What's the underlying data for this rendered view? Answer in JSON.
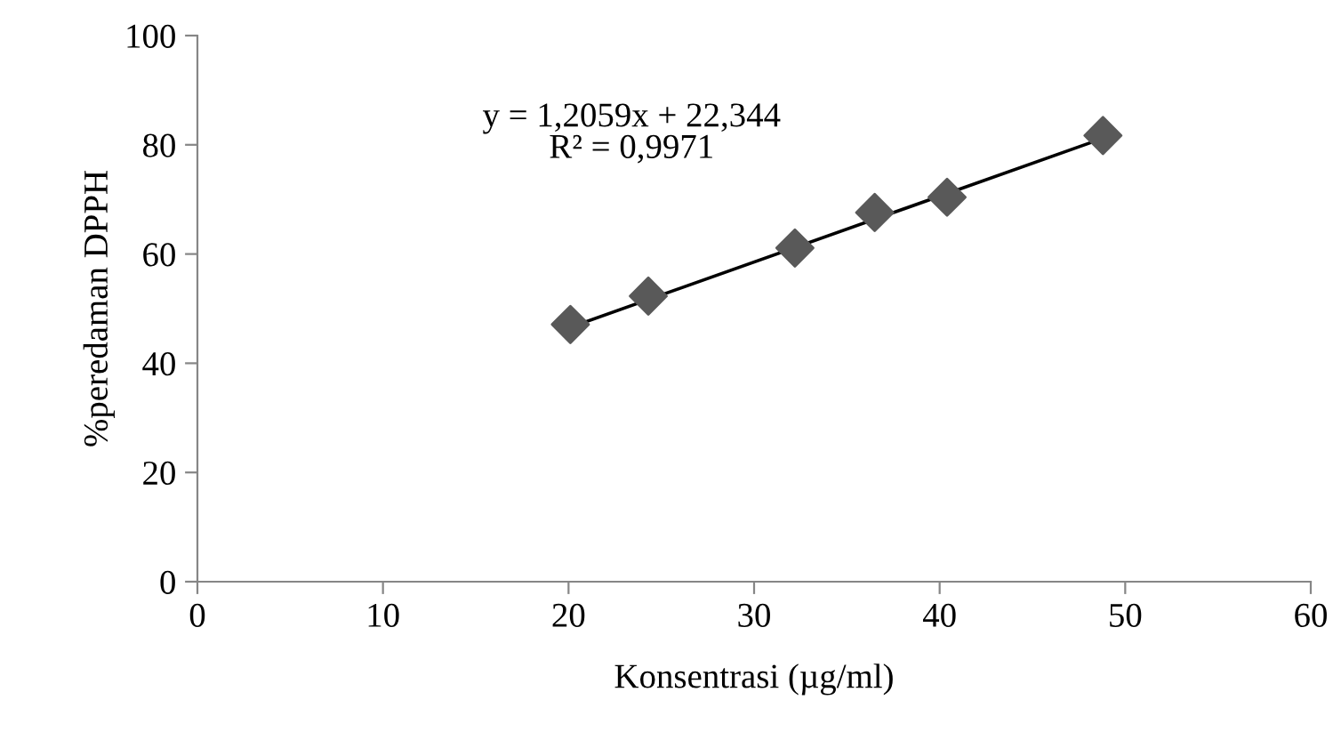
{
  "chart_data": {
    "type": "scatter",
    "xlabel": "Konsentrasi (µg/ml)",
    "ylabel": "%peredaman DPPH",
    "series": [
      {
        "color": "#595959",
        "marker": "diamond",
        "x": [
          20.1,
          24.3,
          32.2,
          36.5,
          40.4,
          48.8
        ],
        "values": [
          47.1,
          52.3,
          61.1,
          67.6,
          70.4,
          81.7
        ]
      },
      {
        "type": "line",
        "color": "#000000",
        "marker": "none",
        "line_style": "solid",
        "x": [
          20.1,
          48.8
        ],
        "values": [
          46.6,
          81.2
        ]
      }
    ],
    "annotations": [
      "y = 1,2059x + 22,344\nR² = 0,9971"
    ],
    "xlim": [
      0,
      60
    ],
    "xticks": [
      0,
      10,
      20,
      30,
      40,
      50,
      60
    ],
    "ylim": [
      0,
      100
    ],
    "yticks": [
      0,
      20,
      40,
      60,
      80,
      100
    ],
    "grid": false,
    "legend": false
  }
}
